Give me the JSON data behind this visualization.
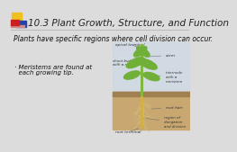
{
  "bg_color": "#e8e8e8",
  "title": "10.3 Plant Growth, Structure, and Function",
  "title_color": "#222222",
  "title_fontsize": 7.5,
  "subtitle": "Plants have specific regions where cell division can occur.",
  "subtitle_fontsize": 5.5,
  "subtitle_color": "#111111",
  "body_line1": "· Meristems are found at",
  "body_line2": "  each growing tip.",
  "body_fontsize": 5.0,
  "body_color": "#111111",
  "logo": {
    "yellow": "#f0c020",
    "red": "#cc2020",
    "blue": "#2244aa",
    "pink": "#d08888"
  },
  "divider_color": "#aaaaaa",
  "slide_bg": "#dcdcdc",
  "plant_bg": "#c8d8e8",
  "soil_color": "#c8a870",
  "soil_dark": "#a08050",
  "stem_color": "#80b840",
  "leaf_color": "#70b038",
  "leaf_dark": "#509028",
  "root_color": "#d0b878",
  "label_color": "#333333",
  "label_fs": 3.2,
  "anno_line_color": "#666666"
}
